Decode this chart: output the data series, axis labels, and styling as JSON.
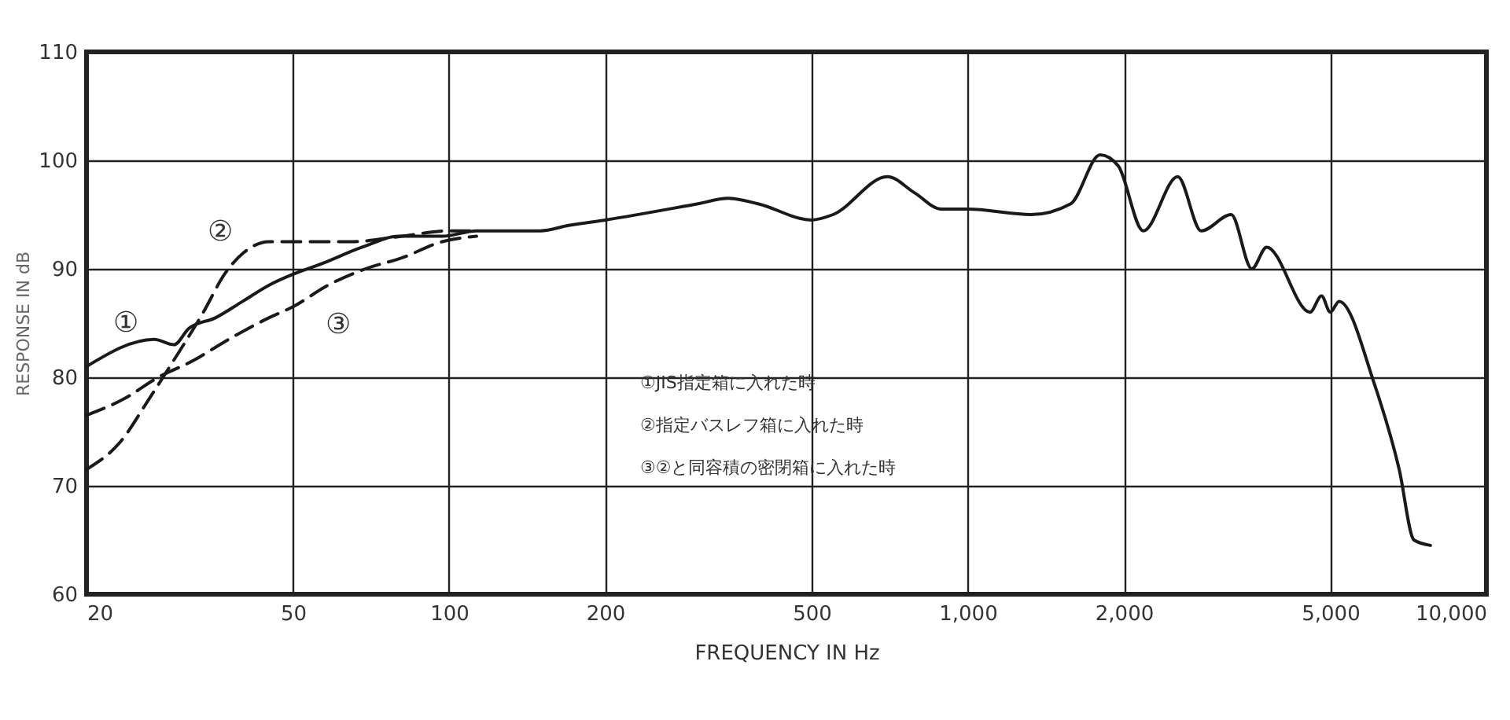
{
  "chart_data": {
    "type": "line",
    "xlabel": "FREQUENCY IN Hz",
    "ylabel": "RESPONSE IN dB",
    "log": "x",
    "grid": true,
    "legend": false,
    "marker": "none",
    "xlim": [
      20,
      10000
    ],
    "ylim": [
      60,
      110
    ],
    "xticks": [
      20,
      50,
      100,
      200,
      500,
      {
        "value": 1000,
        "label": "1,000"
      },
      {
        "value": 2000,
        "label": "2,000"
      },
      {
        "value": 5000,
        "label": "5,000"
      },
      {
        "value": 10000,
        "label": "10,000"
      }
    ],
    "yticks": [
      60,
      70,
      80,
      90,
      100,
      110
    ],
    "series": [
      {
        "color": "#1a1a1a",
        "line_style": "solid",
        "x": [
          20,
          27,
          29.5,
          31.5,
          35.5,
          40,
          45,
          50,
          57,
          68,
          80,
          97,
          113,
          150,
          170,
          200,
          302,
          345,
          394,
          500,
          550,
          700,
          790,
          890,
          1000,
          1325,
          1580,
          1800,
          1950,
          2180,
          2540,
          2820,
          3220,
          3530,
          3770,
          4570,
          4810,
          5000,
          5200,
          6070,
          6790,
          7250,
          7800
        ],
        "values": [
          81,
          83.5,
          83,
          84.5,
          85.5,
          87,
          88.5,
          89.5,
          90.5,
          92,
          93,
          93,
          93.5,
          93.5,
          94,
          94.5,
          96,
          96.5,
          96,
          94.5,
          95,
          98.5,
          97,
          95.5,
          95.5,
          95,
          96,
          100.5,
          99.5,
          93.5,
          98.5,
          93.5,
          95,
          90,
          92,
          86,
          87.5,
          86,
          87,
          79.5,
          71.5,
          65,
          64.5
        ]
      },
      {
        "color": "#1a1a1a",
        "line_style": "dashed",
        "x": [
          20,
          23.2,
          26.4,
          29.4,
          33.6,
          36.9,
          40.2,
          45,
          50,
          64.8,
          81,
          100,
          113
        ],
        "values": [
          71.5,
          74,
          78,
          81.5,
          86,
          89.5,
          91.5,
          92.5,
          92.5,
          92.5,
          93,
          93.5,
          93.5
        ]
      },
      {
        "color": "#1a1a1a",
        "line_style": "dashed",
        "x": [
          20,
          23.6,
          27.5,
          32,
          37.6,
          45,
          50,
          58.5,
          69,
          81,
          97,
          113
        ],
        "values": [
          76.5,
          78,
          80,
          81.5,
          83.5,
          85.5,
          86.5,
          88.5,
          90,
          91,
          92.5,
          93
        ]
      }
    ],
    "annotations": [
      "①",
      "②",
      "③",
      "①JIS指定箱に入れた時",
      "②指定バスレフ箱に入れた時",
      "③②と同容積の密閉箱に入れた時"
    ]
  }
}
